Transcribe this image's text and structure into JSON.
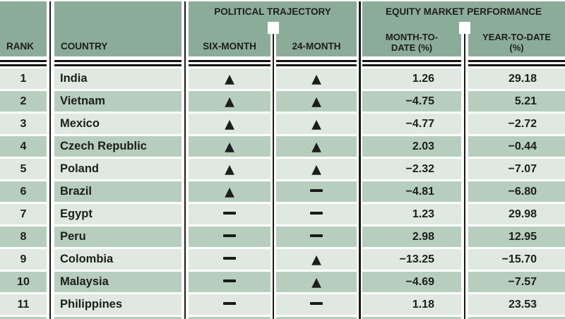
{
  "header": {
    "rank_label": "RANK",
    "country_label": "COUNTRY",
    "political": {
      "title": "POLITICAL TRAJECTORY",
      "six_label": "SIX-MONTH",
      "m24_label": "24-MONTH"
    },
    "equity": {
      "title": "EQUITY MARKET PERFORMANCE",
      "mtd_line1": "MONTH-TO-",
      "mtd_line2": "DATE (%)",
      "ytd_line1": "YEAR-TO-DATE",
      "ytd_line2": "(%)"
    }
  },
  "symbols": {
    "up": "▲",
    "flat": "—"
  },
  "colors": {
    "header_green": "#8cac9a",
    "row_light": "#dfe9e1",
    "row_dark": "#b7cebe",
    "text": "#1d1d1d",
    "rule_black": "#141414"
  },
  "rows": [
    {
      "rank": "1",
      "country": "India",
      "six": "up",
      "m24": "up",
      "mtd": "1.26",
      "ytd": "29.18"
    },
    {
      "rank": "2",
      "country": "Vietnam",
      "six": "up",
      "m24": "up",
      "mtd": "−4.75",
      "ytd": "5.21"
    },
    {
      "rank": "3",
      "country": "Mexico",
      "six": "up",
      "m24": "up",
      "mtd": "−4.77",
      "ytd": "−2.72"
    },
    {
      "rank": "4",
      "country": "Czech Republic",
      "six": "up",
      "m24": "up",
      "mtd": "2.03",
      "ytd": "−0.44"
    },
    {
      "rank": "5",
      "country": "Poland",
      "six": "up",
      "m24": "up",
      "mtd": "−2.32",
      "ytd": "−7.07"
    },
    {
      "rank": "6",
      "country": "Brazil",
      "six": "up",
      "m24": "flat",
      "mtd": "−4.81",
      "ytd": "−6.80"
    },
    {
      "rank": "7",
      "country": "Egypt",
      "six": "flat",
      "m24": "flat",
      "mtd": "1.23",
      "ytd": "29.98"
    },
    {
      "rank": "8",
      "country": "Peru",
      "six": "flat",
      "m24": "flat",
      "mtd": "2.98",
      "ytd": "12.95"
    },
    {
      "rank": "9",
      "country": "Colombia",
      "six": "flat",
      "m24": "up",
      "mtd": "−13.25",
      "ytd": "−15.70"
    },
    {
      "rank": "10",
      "country": "Malaysia",
      "six": "flat",
      "m24": "up",
      "mtd": "−4.69",
      "ytd": "−7.57"
    },
    {
      "rank": "11",
      "country": "Philippines",
      "six": "flat",
      "m24": "flat",
      "mtd": "1.18",
      "ytd": "23.53"
    }
  ]
}
